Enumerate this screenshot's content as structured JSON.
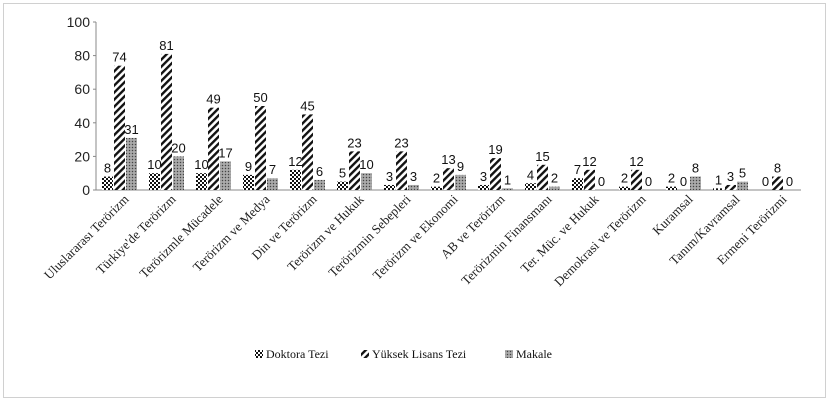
{
  "chart_data": {
    "type": "bar",
    "categories": [
      "Uluslararası Terörizm",
      "Türkiye'de Terörizm",
      "Terörizmle Mücadele",
      "Terörizm ve Medya",
      "Din ve Terörizm",
      "Terörizm ve Hukuk",
      "Terörizmin Sebepleri",
      "Terörizm ve Ekonomi",
      "AB ve Terörizm",
      "Terörizmin Finansmanı",
      "Ter. Müc. ve Hukuk",
      "Demokrasi ve Terörizm",
      "Kuramsal",
      "Tanım/Kavramsal",
      "Ermeni Terörizmi"
    ],
    "series": [
      {
        "name": "Doktora Tezi",
        "values": [
          8,
          10,
          10,
          9,
          12,
          5,
          3,
          2,
          3,
          4,
          7,
          2,
          2,
          1,
          0
        ]
      },
      {
        "name": "Yüksek Lisans Tezi",
        "values": [
          74,
          81,
          49,
          50,
          45,
          23,
          23,
          13,
          19,
          15,
          12,
          12,
          0,
          3,
          8
        ]
      },
      {
        "name": "Makale",
        "values": [
          31,
          20,
          17,
          7,
          6,
          10,
          3,
          9,
          1,
          2,
          0,
          0,
          8,
          5,
          0
        ]
      }
    ],
    "y_ticks": [
      "0",
      "20",
      "40",
      "60",
      "80",
      "100"
    ],
    "ylim": [
      0,
      100
    ],
    "grid": false,
    "legend": "bottom"
  }
}
